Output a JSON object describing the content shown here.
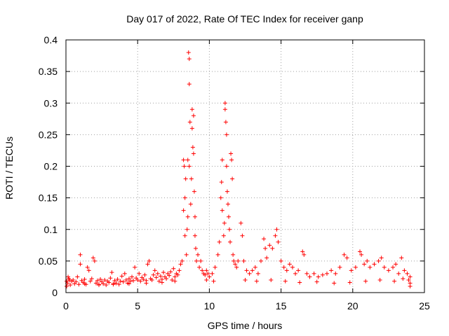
{
  "chart_data": {
    "type": "scatter",
    "title": "Day 017 of 2022, Rate Of TEC Index for receiver ganp",
    "xlabel": "GPS time / hours",
    "ylabel": "ROTI / TECUs",
    "xlim": [
      0,
      25
    ],
    "ylim": [
      0,
      0.4
    ],
    "xticks": [
      0,
      5,
      10,
      15,
      20,
      25
    ],
    "yticks": [
      0,
      0.05,
      0.1,
      0.15,
      0.2,
      0.25,
      0.3,
      0.35,
      0.4
    ],
    "xtick_labels": [
      "0",
      "5",
      "10",
      "15",
      "20",
      "25"
    ],
    "ytick_labels": [
      "0",
      "0.05",
      "0.1",
      "0.15",
      "0.2",
      "0.25",
      "0.3",
      "0.35",
      "0.4"
    ],
    "grid": true,
    "marker": "plus",
    "color": "#ff0000",
    "series": [
      {
        "points": [
          [
            0.1,
            0.015
          ],
          [
            0.2,
            0.022
          ],
          [
            0.3,
            0.012
          ],
          [
            0.4,
            0.018
          ],
          [
            0.5,
            0.02
          ],
          [
            0.6,
            0.014
          ],
          [
            0.7,
            0.017
          ],
          [
            0.8,
            0.025
          ],
          [
            0.9,
            0.013
          ],
          [
            1.0,
            0.06
          ],
          [
            1.0,
            0.045
          ],
          [
            1.1,
            0.019
          ],
          [
            1.2,
            0.016
          ],
          [
            1.3,
            0.021
          ],
          [
            1.4,
            0.013
          ],
          [
            1.5,
            0.04
          ],
          [
            1.6,
            0.035
          ],
          [
            1.7,
            0.018
          ],
          [
            1.8,
            0.022
          ],
          [
            1.9,
            0.055
          ],
          [
            2.0,
            0.05
          ],
          [
            2.1,
            0.015
          ],
          [
            2.2,
            0.019
          ],
          [
            2.3,
            0.013
          ],
          [
            2.4,
            0.021
          ],
          [
            2.5,
            0.017
          ],
          [
            2.6,
            0.014
          ],
          [
            2.7,
            0.02
          ],
          [
            2.8,
            0.012
          ],
          [
            2.9,
            0.018
          ],
          [
            3.0,
            0.016
          ],
          [
            3.1,
            0.023
          ],
          [
            3.2,
            0.032
          ],
          [
            3.3,
            0.014
          ],
          [
            3.4,
            0.019
          ],
          [
            3.5,
            0.015
          ],
          [
            3.6,
            0.021
          ],
          [
            3.7,
            0.013
          ],
          [
            3.8,
            0.018
          ],
          [
            3.9,
            0.026
          ],
          [
            4.0,
            0.017
          ],
          [
            4.1,
            0.03
          ],
          [
            4.2,
            0.02
          ],
          [
            4.3,
            0.015
          ],
          [
            4.4,
            0.022
          ],
          [
            4.5,
            0.018
          ],
          [
            4.6,
            0.025
          ],
          [
            4.7,
            0.019
          ],
          [
            4.8,
            0.04
          ],
          [
            4.9,
            0.023
          ],
          [
            5.0,
            0.02
          ],
          [
            5.1,
            0.03
          ],
          [
            5.2,
            0.018
          ],
          [
            5.3,
            0.024
          ],
          [
            5.4,
            0.021
          ],
          [
            5.5,
            0.028
          ],
          [
            5.6,
            0.019
          ],
          [
            5.7,
            0.045
          ],
          [
            5.8,
            0.05
          ],
          [
            5.9,
            0.022
          ],
          [
            6.0,
            0.02
          ],
          [
            6.1,
            0.028
          ],
          [
            6.2,
            0.035
          ],
          [
            6.3,
            0.024
          ],
          [
            6.4,
            0.03
          ],
          [
            6.5,
            0.018
          ],
          [
            6.6,
            0.026
          ],
          [
            6.7,
            0.021
          ],
          [
            6.8,
            0.032
          ],
          [
            6.9,
            0.025
          ],
          [
            7.0,
            0.022
          ],
          [
            7.1,
            0.03
          ],
          [
            7.2,
            0.027
          ],
          [
            7.3,
            0.033
          ],
          [
            7.4,
            0.02
          ],
          [
            7.5,
            0.038
          ],
          [
            7.6,
            0.025
          ],
          [
            7.7,
            0.03
          ],
          [
            7.8,
            0.028
          ],
          [
            7.9,
            0.035
          ],
          [
            8.0,
            0.045
          ],
          [
            8.1,
            0.05
          ],
          [
            8.2,
            0.21
          ],
          [
            8.2,
            0.13
          ],
          [
            8.25,
            0.2
          ],
          [
            8.3,
            0.15
          ],
          [
            8.3,
            0.09
          ],
          [
            8.35,
            0.18
          ],
          [
            8.4,
            0.06
          ],
          [
            8.45,
            0.1
          ],
          [
            8.5,
            0.12
          ],
          [
            8.5,
            0.21
          ],
          [
            8.55,
            0.38
          ],
          [
            8.6,
            0.37
          ],
          [
            8.6,
            0.33
          ],
          [
            8.6,
            0.2
          ],
          [
            8.65,
            0.27
          ],
          [
            8.7,
            0.14
          ],
          [
            8.75,
            0.18
          ],
          [
            8.8,
            0.26
          ],
          [
            8.8,
            0.29
          ],
          [
            8.85,
            0.23
          ],
          [
            8.9,
            0.28
          ],
          [
            8.9,
            0.22
          ],
          [
            8.95,
            0.16
          ],
          [
            9.0,
            0.12
          ],
          [
            9.0,
            0.09
          ],
          [
            9.05,
            0.07
          ],
          [
            9.1,
            0.05
          ],
          [
            9.2,
            0.06
          ],
          [
            9.3,
            0.04
          ],
          [
            9.4,
            0.05
          ],
          [
            9.5,
            0.035
          ],
          [
            9.6,
            0.03
          ],
          [
            9.7,
            0.028
          ],
          [
            9.8,
            0.035
          ],
          [
            9.9,
            0.03
          ],
          [
            10.0,
            0.025
          ],
          [
            10.2,
            0.03
          ],
          [
            10.4,
            0.04
          ],
          [
            10.6,
            0.06
          ],
          [
            10.7,
            0.08
          ],
          [
            10.8,
            0.15
          ],
          [
            10.85,
            0.175
          ],
          [
            10.9,
            0.21
          ],
          [
            10.9,
            0.13
          ],
          [
            11.0,
            0.09
          ],
          [
            11.05,
            0.11
          ],
          [
            11.1,
            0.3
          ],
          [
            11.1,
            0.29
          ],
          [
            11.15,
            0.27
          ],
          [
            11.2,
            0.25
          ],
          [
            11.2,
            0.2
          ],
          [
            11.25,
            0.16
          ],
          [
            11.3,
            0.14
          ],
          [
            11.35,
            0.12
          ],
          [
            11.4,
            0.1
          ],
          [
            11.45,
            0.08
          ],
          [
            11.5,
            0.22
          ],
          [
            11.55,
            0.21
          ],
          [
            11.6,
            0.18
          ],
          [
            11.65,
            0.06
          ],
          [
            11.7,
            0.05
          ],
          [
            11.8,
            0.045
          ],
          [
            11.9,
            0.04
          ],
          [
            12.0,
            0.05
          ],
          [
            12.2,
            0.11
          ],
          [
            12.3,
            0.09
          ],
          [
            12.4,
            0.05
          ],
          [
            12.6,
            0.035
          ],
          [
            12.8,
            0.03
          ],
          [
            13.0,
            0.035
          ],
          [
            13.2,
            0.04
          ],
          [
            13.4,
            0.03
          ],
          [
            13.6,
            0.05
          ],
          [
            13.8,
            0.085
          ],
          [
            13.9,
            0.07
          ],
          [
            14.0,
            0.055
          ],
          [
            14.2,
            0.075
          ],
          [
            14.4,
            0.07
          ],
          [
            14.6,
            0.09
          ],
          [
            14.7,
            0.1
          ],
          [
            14.8,
            0.08
          ],
          [
            15.0,
            0.05
          ],
          [
            15.2,
            0.04
          ],
          [
            15.4,
            0.035
          ],
          [
            15.6,
            0.045
          ],
          [
            15.8,
            0.04
          ],
          [
            16.0,
            0.03
          ],
          [
            16.2,
            0.035
          ],
          [
            16.5,
            0.065
          ],
          [
            16.6,
            0.06
          ],
          [
            16.8,
            0.03
          ],
          [
            17.0,
            0.025
          ],
          [
            17.3,
            0.03
          ],
          [
            17.6,
            0.025
          ],
          [
            17.9,
            0.028
          ],
          [
            18.2,
            0.03
          ],
          [
            18.5,
            0.035
          ],
          [
            18.8,
            0.03
          ],
          [
            19.1,
            0.04
          ],
          [
            19.4,
            0.06
          ],
          [
            19.6,
            0.055
          ],
          [
            19.9,
            0.035
          ],
          [
            20.2,
            0.04
          ],
          [
            20.5,
            0.065
          ],
          [
            20.6,
            0.06
          ],
          [
            20.8,
            0.045
          ],
          [
            21.0,
            0.05
          ],
          [
            21.2,
            0.04
          ],
          [
            21.5,
            0.045
          ],
          [
            21.8,
            0.05
          ],
          [
            22.0,
            0.055
          ],
          [
            22.2,
            0.04
          ],
          [
            22.5,
            0.035
          ],
          [
            22.8,
            0.04
          ],
          [
            23.0,
            0.045
          ],
          [
            23.2,
            0.03
          ],
          [
            23.4,
            0.055
          ],
          [
            23.6,
            0.035
          ],
          [
            23.8,
            0.03
          ],
          [
            24.0,
            0.025
          ],
          [
            24.0,
            0.015
          ],
          [
            23.9,
            0.02
          ],
          [
            23.5,
            0.022
          ],
          [
            22.9,
            0.018
          ],
          [
            21.9,
            0.02
          ],
          [
            20.9,
            0.018
          ],
          [
            19.8,
            0.016
          ],
          [
            18.7,
            0.015
          ],
          [
            17.5,
            0.017
          ],
          [
            16.3,
            0.016
          ],
          [
            15.3,
            0.018
          ],
          [
            14.3,
            0.02
          ],
          [
            13.3,
            0.018
          ],
          [
            12.5,
            0.02
          ],
          [
            10.3,
            0.018
          ],
          [
            9.8,
            0.02
          ],
          [
            7.6,
            0.018
          ],
          [
            6.7,
            0.016
          ],
          [
            5.6,
            0.015
          ],
          [
            4.4,
            0.014
          ],
          [
            3.3,
            0.013
          ],
          [
            2.3,
            0.012
          ],
          [
            1.3,
            0.014
          ],
          [
            0.05,
            0.01
          ],
          [
            0.15,
            0.025
          ],
          [
            0.25,
            0.02
          ],
          [
            0.05,
            0.018
          ],
          [
            24.0,
            0.01
          ]
        ]
      }
    ]
  }
}
